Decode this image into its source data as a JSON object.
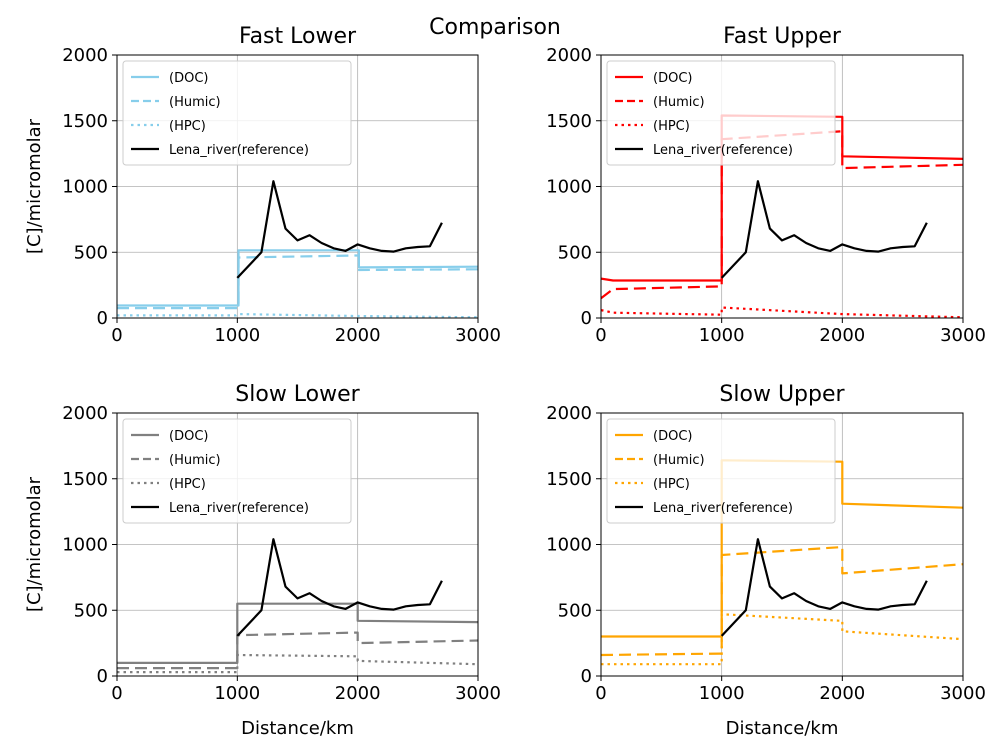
{
  "figure_title": "Comparison",
  "chart_data": [
    {
      "type": "line",
      "title": "Fast Lower",
      "xlabel": "",
      "ylabel": "[C]/micromolar",
      "xlim": [
        0,
        3000
      ],
      "ylim": [
        0,
        2000
      ],
      "xticks": [
        0,
        1000,
        2000,
        3000
      ],
      "yticks": [
        0,
        500,
        1000,
        1500,
        2000
      ],
      "grid": true,
      "legend_position": "top-left",
      "color": "#87CEEB",
      "series": [
        {
          "name": "(DOC)",
          "style": "solid",
          "x": [
            0,
            990,
            990,
            1010,
            1010,
            1990,
            1990,
            2010,
            2010,
            3000
          ],
          "y": [
            95,
            95,
            95,
            95,
            515,
            515,
            515,
            515,
            385,
            390
          ]
        },
        {
          "name": "(Humic)",
          "style": "dashed",
          "x": [
            0,
            990,
            990,
            1010,
            1010,
            1990,
            1990,
            2010,
            2010,
            3000
          ],
          "y": [
            75,
            75,
            75,
            75,
            460,
            475,
            475,
            475,
            365,
            370
          ]
        },
        {
          "name": "(HPC)",
          "style": "dotted",
          "x": [
            0,
            990,
            1010,
            2000,
            3000
          ],
          "y": [
            20,
            20,
            30,
            15,
            5
          ]
        },
        {
          "name": "Lena_river(reference)",
          "style": "solid",
          "reference": true
        }
      ]
    },
    {
      "type": "line",
      "title": "Fast Upper",
      "xlabel": "",
      "ylabel": "",
      "xlim": [
        0,
        3000
      ],
      "ylim": [
        0,
        2000
      ],
      "xticks": [
        0,
        1000,
        2000,
        3000
      ],
      "yticks": [
        0,
        500,
        1000,
        1500,
        2000
      ],
      "grid": true,
      "legend_position": "top-left",
      "color": "#FF0000",
      "series": [
        {
          "name": "(DOC)",
          "style": "solid",
          "x": [
            0,
            100,
            990,
            1000,
            1000,
            1990,
            2000,
            2000,
            3000
          ],
          "y": [
            300,
            285,
            285,
            285,
            1540,
            1530,
            1530,
            1230,
            1210
          ]
        },
        {
          "name": "(Humic)",
          "style": "dashed",
          "x": [
            0,
            100,
            990,
            1000,
            1000,
            1990,
            2000,
            2000,
            3000
          ],
          "y": [
            150,
            220,
            240,
            240,
            1360,
            1420,
            1420,
            1140,
            1165
          ]
        },
        {
          "name": "(HPC)",
          "style": "dotted",
          "x": [
            0,
            100,
            990,
            1000,
            1000,
            2000,
            3000
          ],
          "y": [
            60,
            40,
            25,
            25,
            80,
            30,
            5
          ]
        },
        {
          "name": "Lena_river(reference)",
          "style": "solid",
          "reference": true
        }
      ]
    },
    {
      "type": "line",
      "title": "Slow Lower",
      "xlabel": "Distance/km",
      "ylabel": "[C]/micromolar",
      "xlim": [
        0,
        3000
      ],
      "ylim": [
        0,
        2000
      ],
      "xticks": [
        0,
        1000,
        2000,
        3000
      ],
      "yticks": [
        0,
        500,
        1000,
        1500,
        2000
      ],
      "grid": true,
      "legend_position": "top-left",
      "color": "#808080",
      "series": [
        {
          "name": "(DOC)",
          "style": "solid",
          "x": [
            0,
            990,
            1000,
            1000,
            1990,
            2000,
            2000,
            3000
          ],
          "y": [
            100,
            100,
            100,
            550,
            550,
            550,
            420,
            410
          ]
        },
        {
          "name": "(Humic)",
          "style": "dashed",
          "x": [
            0,
            990,
            1000,
            1000,
            1990,
            2000,
            2000,
            3000
          ],
          "y": [
            60,
            60,
            60,
            310,
            330,
            330,
            250,
            270
          ]
        },
        {
          "name": "(HPC)",
          "style": "dotted",
          "x": [
            0,
            990,
            1000,
            1000,
            1990,
            2000,
            2000,
            3000
          ],
          "y": [
            30,
            30,
            30,
            160,
            150,
            150,
            115,
            90
          ]
        },
        {
          "name": "Lena_river(reference)",
          "style": "solid",
          "reference": true
        }
      ]
    },
    {
      "type": "line",
      "title": "Slow Upper",
      "xlabel": "Distance/km",
      "ylabel": "",
      "xlim": [
        0,
        3000
      ],
      "ylim": [
        0,
        2000
      ],
      "xticks": [
        0,
        1000,
        2000,
        3000
      ],
      "yticks": [
        0,
        500,
        1000,
        1500,
        2000
      ],
      "grid": true,
      "legend_position": "top-left",
      "color": "#FFA500",
      "series": [
        {
          "name": "(DOC)",
          "style": "solid",
          "x": [
            0,
            990,
            1000,
            1000,
            1990,
            2000,
            2000,
            3000
          ],
          "y": [
            300,
            300,
            300,
            1640,
            1630,
            1630,
            1310,
            1280
          ]
        },
        {
          "name": "(Humic)",
          "style": "dashed",
          "x": [
            0,
            990,
            1000,
            1000,
            1990,
            2000,
            2000,
            3000
          ],
          "y": [
            160,
            170,
            170,
            920,
            980,
            980,
            780,
            850
          ]
        },
        {
          "name": "(HPC)",
          "style": "dotted",
          "x": [
            0,
            990,
            1000,
            1000,
            1990,
            2000,
            2000,
            3000
          ],
          "y": [
            90,
            90,
            90,
            470,
            420,
            420,
            340,
            280
          ]
        },
        {
          "name": "Lena_river(reference)",
          "style": "solid",
          "reference": true
        }
      ]
    }
  ],
  "reference_series": {
    "name": "Lena_river(reference)",
    "color": "#000000",
    "x": [
      1000,
      1200,
      1300,
      1400,
      1500,
      1600,
      1700,
      1800,
      1900,
      2000,
      2100,
      2200,
      2300,
      2400,
      2500,
      2600,
      2700
    ],
    "y": [
      305,
      500,
      1040,
      680,
      590,
      630,
      570,
      530,
      510,
      560,
      530,
      510,
      505,
      530,
      540,
      545,
      725
    ]
  }
}
